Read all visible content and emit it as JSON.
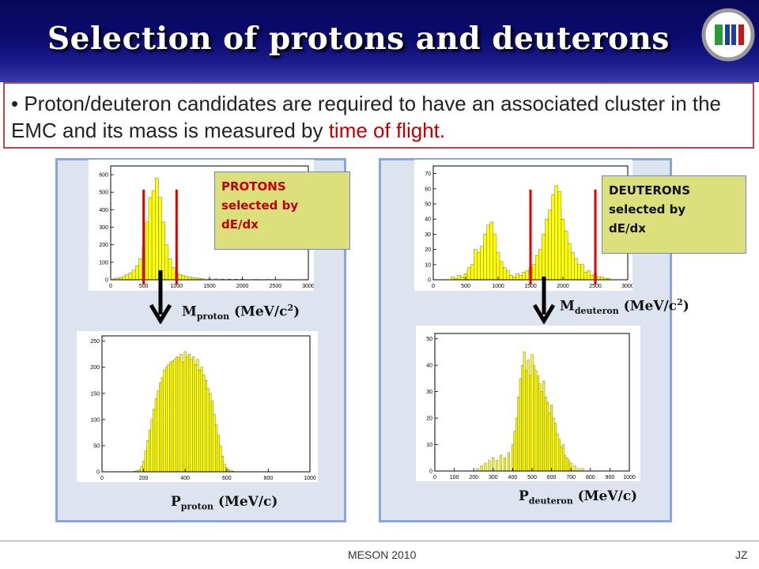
{
  "slide": {
    "title": "Selection of protons and deuterons",
    "bullet_main": "Proton/deuteron candidates are required to have an associated cluster in the EMC and its mass is measured by ",
    "bullet_highlight": "time of flight.",
    "bullet_marker": "•"
  },
  "colors": {
    "title_bg": "#0b0b6e",
    "highlight": "#c00000",
    "hist_fill": "#ffff00",
    "cut_line": "#e00000",
    "panel_bg": "#dde3ef"
  },
  "left": {
    "callout": [
      "PROTONS",
      "selected by",
      "dE/dx"
    ],
    "mass_label": {
      "main": "M",
      "sub": "proton",
      "rest": " (MeV/c",
      "sup": "2",
      "end": ")"
    },
    "mom_label": {
      "main": "P",
      "sub": "proton",
      "rest": " (MeV/c)"
    }
  },
  "right": {
    "callout": [
      "DEUTERONS",
      "selected by",
      "dE/dx"
    ],
    "mass_label": {
      "main": "M",
      "sub": "deuteron",
      "rest": " (MeV/c",
      "sup": "2",
      "end": ")"
    },
    "mom_label": {
      "main": "P",
      "sub": "deuteron",
      "rest": " (MeV/c)"
    }
  },
  "footer": {
    "center": "MESON 2010",
    "right": "JZ"
  },
  "chart_data": [
    {
      "id": "proton_mass",
      "type": "bar",
      "xlim": [
        0,
        3000
      ],
      "ylim": [
        0,
        650
      ],
      "xticks": [
        0,
        500,
        1000,
        1500,
        2000,
        2500,
        3000
      ],
      "yticks": [
        0,
        100,
        200,
        300,
        400,
        500,
        600
      ],
      "cuts": [
        500,
        1000
      ],
      "bin_width": 50,
      "x": [
        50,
        100,
        150,
        200,
        250,
        300,
        350,
        400,
        450,
        500,
        550,
        600,
        650,
        700,
        750,
        800,
        850,
        900,
        950,
        1000,
        1050,
        1100,
        1150,
        1200,
        1250,
        1300,
        1350,
        1400,
        1500,
        1600,
        1700,
        1800,
        1900,
        2000,
        2200,
        2400,
        2600
      ],
      "values": [
        5,
        10,
        12,
        20,
        30,
        40,
        55,
        80,
        120,
        190,
        330,
        470,
        510,
        580,
        470,
        330,
        200,
        120,
        70,
        45,
        30,
        25,
        20,
        15,
        12,
        10,
        8,
        6,
        5,
        5,
        4,
        4,
        3,
        3,
        2,
        2,
        1
      ]
    },
    {
      "id": "proton_momentum",
      "type": "bar",
      "xlim": [
        0,
        1000
      ],
      "ylim": [
        0,
        260
      ],
      "xticks": [
        0,
        200,
        400,
        600,
        800,
        1000
      ],
      "yticks": [
        0,
        50,
        100,
        150,
        200,
        250
      ],
      "bin_width": 10,
      "x": [
        160,
        170,
        180,
        190,
        200,
        210,
        220,
        230,
        240,
        250,
        260,
        270,
        280,
        290,
        300,
        310,
        320,
        330,
        340,
        350,
        360,
        370,
        380,
        390,
        400,
        410,
        420,
        430,
        440,
        450,
        460,
        470,
        480,
        490,
        500,
        510,
        520,
        530,
        540,
        550,
        560,
        570,
        580,
        590,
        600,
        610,
        620,
        630
      ],
      "values": [
        1,
        2,
        4,
        10,
        20,
        40,
        60,
        80,
        100,
        120,
        140,
        155,
        170,
        180,
        195,
        200,
        205,
        210,
        212,
        215,
        220,
        218,
        225,
        210,
        230,
        220,
        225,
        215,
        220,
        205,
        215,
        195,
        200,
        185,
        175,
        160,
        150,
        135,
        110,
        90,
        70,
        50,
        30,
        15,
        8,
        4,
        2,
        1
      ]
    },
    {
      "id": "deuteron_mass",
      "type": "bar",
      "xlim": [
        0,
        3000
      ],
      "ylim": [
        0,
        75
      ],
      "xticks": [
        0,
        500,
        1000,
        1500,
        2000,
        2500,
        3000
      ],
      "yticks": [
        0,
        10,
        20,
        30,
        40,
        50,
        60,
        70
      ],
      "cuts": [
        1500,
        2500
      ],
      "bin_width": 50,
      "x": [
        300,
        350,
        400,
        450,
        500,
        550,
        600,
        650,
        700,
        750,
        800,
        850,
        900,
        950,
        1000,
        1050,
        1100,
        1150,
        1200,
        1250,
        1300,
        1350,
        1400,
        1450,
        1500,
        1550,
        1600,
        1650,
        1700,
        1750,
        1800,
        1850,
        1900,
        1950,
        2000,
        2050,
        2100,
        2150,
        2200,
        2250,
        2300,
        2350,
        2400,
        2450,
        2500,
        2550,
        2600,
        2650,
        2700
      ],
      "values": [
        2,
        1,
        3,
        2,
        4,
        8,
        10,
        20,
        18,
        22,
        30,
        36,
        38,
        30,
        18,
        12,
        8,
        6,
        3,
        2,
        4,
        3,
        5,
        6,
        8,
        10,
        16,
        20,
        30,
        40,
        46,
        56,
        62,
        58,
        40,
        32,
        24,
        18,
        14,
        10,
        10,
        5,
        6,
        3,
        4,
        2,
        2,
        1,
        1
      ]
    },
    {
      "id": "deuteron_momentum",
      "type": "bar",
      "xlim": [
        0,
        1000
      ],
      "ylim": [
        0,
        52
      ],
      "xticks": [
        0,
        100,
        200,
        300,
        400,
        500,
        600,
        700,
        800,
        900,
        1000
      ],
      "yticks": [
        0,
        10,
        20,
        30,
        40,
        50
      ],
      "bin_width": 10,
      "x": [
        220,
        240,
        260,
        280,
        300,
        320,
        340,
        360,
        380,
        400,
        410,
        420,
        430,
        440,
        450,
        460,
        470,
        480,
        490,
        500,
        510,
        520,
        530,
        540,
        550,
        560,
        570,
        580,
        590,
        600,
        610,
        620,
        630,
        640,
        650,
        660,
        670,
        680,
        690,
        700,
        720,
        740,
        760
      ],
      "values": [
        1,
        2,
        3,
        4,
        5,
        4,
        6,
        5,
        7,
        10,
        15,
        20,
        28,
        35,
        40,
        45,
        38,
        42,
        36,
        44,
        40,
        38,
        36,
        33,
        30,
        34,
        28,
        26,
        22,
        25,
        20,
        18,
        14,
        12,
        9,
        10,
        6,
        5,
        4,
        3,
        2,
        1,
        1
      ]
    }
  ]
}
